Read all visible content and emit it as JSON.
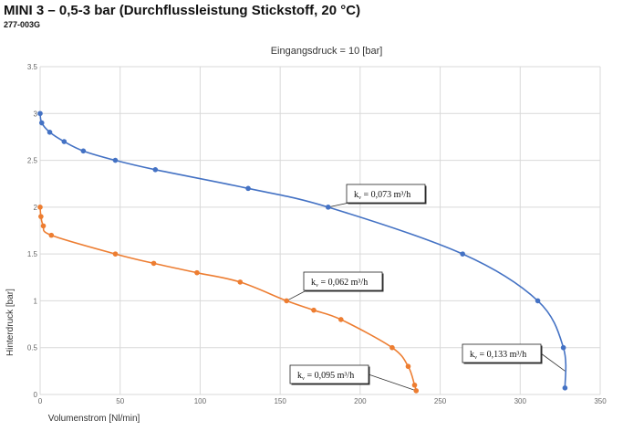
{
  "header": {
    "title": "MINI 3 – 0,5-3 bar (Durchflussleistung Stickstoff, 20 °C)",
    "subtitle": "277-003G"
  },
  "chart_data": {
    "type": "scatter-line",
    "title": "Eingangsdruck = 10 [bar]",
    "xlabel": "Volumenstrom [Nl/min]",
    "ylabel": "Hinterdruck [bar]",
    "xlim": [
      0,
      350
    ],
    "ylim": [
      0,
      3.5
    ],
    "xticks": [
      0,
      50,
      100,
      150,
      200,
      250,
      300,
      350
    ],
    "yticks": [
      0,
      0.5,
      1,
      1.5,
      2,
      2.5,
      3,
      3.5
    ],
    "ytick_labels": [
      "0",
      "0.5",
      "1",
      "1.5",
      "2",
      "2.5",
      "3",
      "3.5"
    ],
    "grid": true,
    "series": [
      {
        "color": "#4472C4",
        "points": [
          [
            0,
            3.0
          ],
          [
            1,
            2.9
          ],
          [
            6,
            2.8
          ],
          [
            15,
            2.7
          ],
          [
            27,
            2.6
          ],
          [
            47,
            2.5
          ],
          [
            72,
            2.4
          ],
          [
            130,
            2.2
          ],
          [
            180,
            2.0
          ],
          [
            264,
            1.5
          ],
          [
            311,
            1.0
          ],
          [
            327,
            0.5
          ],
          [
            328,
            0.07
          ]
        ]
      },
      {
        "color": "#ED7D31",
        "points": [
          [
            0,
            2.0
          ],
          [
            0.5,
            1.9
          ],
          [
            2,
            1.8
          ],
          [
            7,
            1.7
          ],
          [
            47,
            1.5
          ],
          [
            71,
            1.4
          ],
          [
            98,
            1.3
          ],
          [
            125,
            1.2
          ],
          [
            154,
            1.0
          ],
          [
            171,
            0.9
          ],
          [
            188,
            0.8
          ],
          [
            220,
            0.5
          ],
          [
            230,
            0.3
          ],
          [
            234,
            0.1
          ],
          [
            235,
            0.04
          ]
        ]
      }
    ],
    "annotations": [
      {
        "prefix": "k",
        "sub": "v",
        "text": " = 0,073 m³/h",
        "target": [
          180,
          2.0
        ]
      },
      {
        "prefix": "k",
        "sub": "v",
        "text": " = 0,062 m³/h",
        "target": [
          154,
          1.0
        ]
      },
      {
        "prefix": "k",
        "sub": "v",
        "text": " = 0,095 m³/h",
        "target": [
          235,
          0.04
        ]
      },
      {
        "prefix": "k",
        "sub": "v",
        "text": " = 0,133 m³/h",
        "target": [
          328,
          0.25
        ]
      }
    ]
  }
}
